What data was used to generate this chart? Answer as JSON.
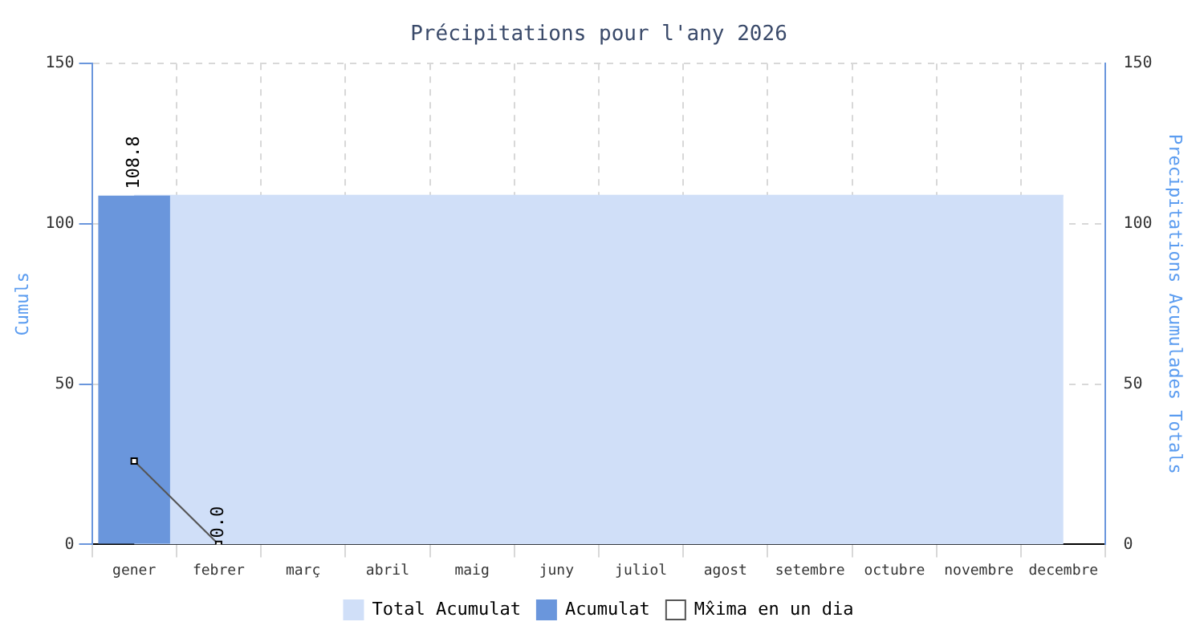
{
  "chart_data": {
    "type": "bar",
    "title": "Précipitations pour l'any 2026",
    "ylabel": "Cumuls",
    "y2label": "Precipitations Acumulades Totals",
    "categories": [
      "gener",
      "febrer",
      "març",
      "abril",
      "maig",
      "juny",
      "juliol",
      "agost",
      "setembre",
      "octubre",
      "novembre",
      "decembre"
    ],
    "series": [
      {
        "name": "Total Acumulat",
        "type": "area",
        "color": "#d0dff8",
        "values": [
          108.8,
          108.8,
          108.8,
          108.8,
          108.8,
          108.8,
          108.8,
          108.8,
          108.8,
          108.8,
          108.8,
          108.8
        ]
      },
      {
        "name": "Acumulat",
        "color": "#6a96dc",
        "values": [
          108.8,
          null,
          null,
          null,
          null,
          null,
          null,
          null,
          null,
          null,
          null,
          null
        ],
        "value_labels": [
          "108.8",
          null,
          null,
          null,
          null,
          null,
          null,
          null,
          null,
          null,
          null,
          null
        ]
      },
      {
        "name": "Mx̂ima en un dia",
        "type": "line",
        "color": "#555555",
        "marker": "square",
        "values": [
          26,
          0.0,
          null,
          null,
          null,
          null,
          null,
          null,
          null,
          null,
          null,
          null
        ],
        "value_labels": [
          null,
          "0.0",
          null,
          null,
          null,
          null,
          null,
          null,
          null,
          null,
          null,
          null
        ]
      }
    ],
    "ylim": [
      0,
      150
    ],
    "yticks": [
      0,
      50,
      100,
      150
    ],
    "y2lim": [
      0,
      150
    ],
    "y2ticks": [
      0,
      50,
      100,
      150
    ],
    "grid": true,
    "legend": "bottom"
  }
}
